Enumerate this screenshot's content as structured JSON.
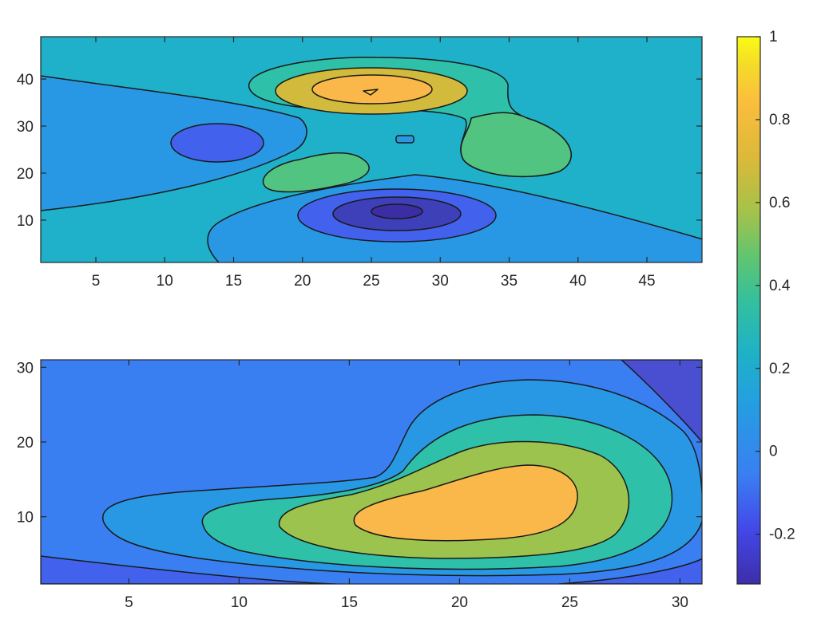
{
  "chart_data": {
    "type": "contourf",
    "colormap": "parula",
    "colors": {
      "level_-0.2": "#3d40b9",
      "level_-0.1": "#4262ee",
      "level_0": "#3a7ff2",
      "level_0.1": "#2898e4",
      "level_0.2": "#1fb1c9",
      "level_0.3": "#2ec0a8",
      "level_0.4": "#52c481",
      "level_0.5": "#9cc34d",
      "level_0.6": "#d2bb3c",
      "level_0.7": "#fbb84a",
      "level_0.8": "#fcc53a",
      "level_1": "#f9fb14"
    },
    "plots": [
      {
        "name": "",
        "xlim": [
          1,
          49
        ],
        "ylim": [
          1,
          49
        ],
        "xticks": [
          5,
          10,
          15,
          20,
          25,
          30,
          35,
          40,
          45
        ],
        "yticks": [
          10,
          20,
          30,
          40
        ],
        "background_level": 0.2,
        "regions": [
          {
            "level": 0.1,
            "label": "lower-left lobe"
          },
          {
            "level": 0.1,
            "label": "left wedge"
          },
          {
            "level": -0.1,
            "label": "left low"
          },
          {
            "level": 0.3,
            "label": "top ring"
          },
          {
            "level": 0.4,
            "label": "right lobe"
          },
          {
            "level": 0.6,
            "label": "top middle"
          },
          {
            "level": 0.7,
            "label": "top peak"
          },
          {
            "level": 0.4,
            "label": "center lobe"
          },
          {
            "level": 0.1,
            "label": "center small"
          },
          {
            "level": -0.1,
            "label": "bottom ring 1"
          },
          {
            "level": -0.2,
            "label": "bottom ring 2"
          },
          {
            "level": -0.3,
            "label": "bottom min"
          }
        ]
      },
      {
        "name": "",
        "xlim": [
          1,
          31
        ],
        "ylim": [
          1,
          31
        ],
        "xticks": [
          5,
          10,
          15,
          20,
          25,
          30
        ],
        "yticks": [
          10,
          20,
          30
        ],
        "background_level": 0,
        "regions": [
          {
            "level": -0.2,
            "label": "bottom band"
          },
          {
            "level": -0.2,
            "label": "top-right corner"
          },
          {
            "level": 0.1,
            "label": "outer lobe"
          },
          {
            "level": 0.2,
            "label": "ring 2"
          },
          {
            "level": 0.35,
            "label": "ring 3"
          },
          {
            "level": 0.5,
            "label": "ring 4"
          },
          {
            "level": 0.8,
            "label": "peak"
          }
        ]
      }
    ],
    "colorbar": {
      "limits": [
        -0.32,
        1
      ],
      "ticks": [
        -0.2,
        0,
        0.2,
        0.4,
        0.6,
        0.8,
        1
      ],
      "tick_labels": [
        "-0.2",
        "0",
        "0.2",
        "0.4",
        "0.6",
        "0.8",
        "1"
      ]
    }
  }
}
